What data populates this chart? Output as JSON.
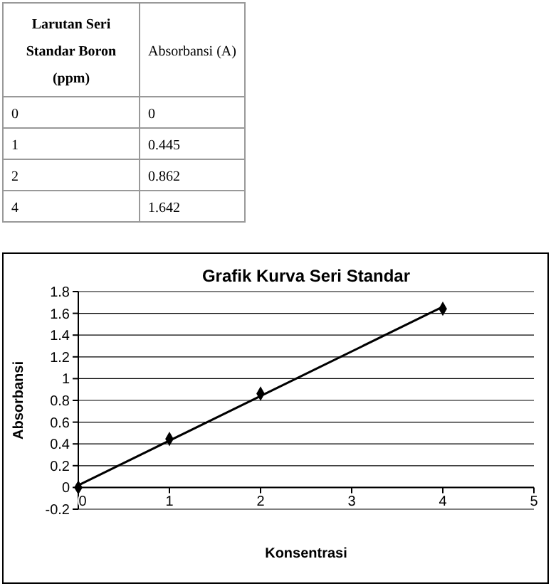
{
  "chart_data": [
    {
      "type": "other",
      "annotations": [
        "Larutan Seri Standar Boron (ppm)",
        "Absorbansi (A)",
        "0",
        "0",
        "1",
        "0.445",
        "2",
        "0.862",
        "4",
        "1.642"
      ]
    },
    {
      "type": "scatter",
      "title": "Grafik Kurva Seri Standar",
      "xlabel": "Konsentrasi",
      "ylabel": "Absorbansi",
      "xlim": [
        0,
        5
      ],
      "xticks": [
        0,
        1,
        2,
        3,
        4,
        5
      ],
      "ylim": [
        -0.2,
        1.8
      ],
      "yticks": [
        -0.2,
        0,
        0.2,
        0.4,
        0.6,
        0.8,
        1,
        1.2,
        1.4,
        1.6,
        1.8
      ],
      "grid": "y",
      "marker": "diamond",
      "series": [
        {
          "type": "scatter",
          "color": "#000000",
          "x": [
            0,
            1,
            2,
            4
          ],
          "values": [
            0,
            0.445,
            0.862,
            1.642
          ]
        },
        {
          "type": "line",
          "color": "#000000",
          "x": [
            0,
            4
          ],
          "values": [
            0.02,
            1.66
          ],
          "line_style": "solid",
          "marker": "none"
        }
      ]
    }
  ]
}
